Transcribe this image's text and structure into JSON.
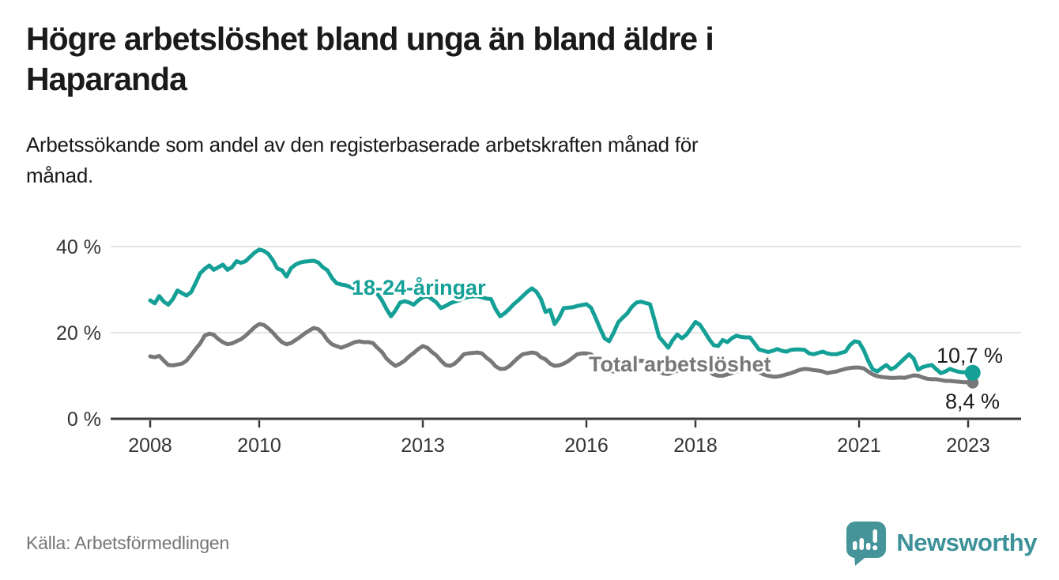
{
  "header": {
    "title": "Högre arbetslöshet bland unga än bland äldre i Haparanda",
    "title_line1": "Högre arbetslöshet bland unga än bland äldre i",
    "title_line2": "Haparanda",
    "subtitle": "Arbetssökande som andel av den registerbaserade arbetskraften månad för månad.",
    "subtitle_line1": "Arbetssökande som andel av den registerbaserade arbetskraften månad för",
    "subtitle_line2": "månad."
  },
  "footer": {
    "source": "Källa: Arbetsförmedlingen",
    "brand": "Newsworthy"
  },
  "colors": {
    "youth": "#14a096",
    "total": "#787878",
    "grid": "#dcdcdc",
    "axis": "#3a3a3a",
    "text": "#1a1a1a",
    "muted": "#757575",
    "brand": "#3d929a"
  },
  "chart_data": {
    "type": "line",
    "title": "Högre arbetslöshet bland unga än bland äldre i Haparanda",
    "subtitle": "Arbetssökande som andel av den registerbaserade arbetskraften månad för månad.",
    "unit": "%",
    "frequency": "monthly",
    "x_start": "2008-01",
    "x_end": "2023-02",
    "grid": "horizontal",
    "legend_position": "inline-labels",
    "x_axis": {
      "ticks": [
        {
          "year": 2008,
          "label": "2008"
        },
        {
          "year": 2010,
          "label": "2010"
        },
        {
          "year": 2013,
          "label": "2013"
        },
        {
          "year": 2016,
          "label": "2016"
        },
        {
          "year": 2018,
          "label": "2018"
        },
        {
          "year": 2021,
          "label": "2021"
        },
        {
          "year": 2023,
          "label": "2023"
        }
      ]
    },
    "y_axis": {
      "range": [
        0,
        44
      ],
      "ticks": [
        {
          "value": 0,
          "label": "0 %"
        },
        {
          "value": 20,
          "label": "20 %"
        },
        {
          "value": 40,
          "label": "40 %"
        }
      ]
    },
    "series": [
      {
        "id": "youth",
        "name": "18-24-åringar",
        "color": "#14a096",
        "end_label": "10,7 %",
        "end_value": 10.7,
        "values": [
          27.5,
          26.8,
          28.5,
          27.2,
          26.5,
          27.8,
          29.8,
          29.2,
          28.6,
          29.4,
          31.5,
          33.8,
          34.8,
          35.6,
          34.6,
          35.2,
          35.8,
          34.6,
          35.2,
          36.6,
          36.2,
          36.6,
          37.6,
          38.6,
          39.3,
          39.0,
          38.3,
          36.8,
          34.9,
          34.5,
          33.0,
          35.0,
          35.8,
          36.3,
          36.5,
          36.6,
          36.7,
          36.3,
          35.2,
          34.5,
          32.7,
          31.5,
          31.2,
          31.0,
          30.6,
          30.2,
          29.8,
          29.5,
          29.8,
          30.2,
          29.0,
          27.5,
          25.5,
          23.8,
          25.2,
          27.0,
          27.3,
          27.0,
          26.5,
          27.5,
          28.2,
          28.5,
          27.8,
          27.0,
          25.7,
          26.2,
          26.8,
          27.2,
          27.5,
          28.0,
          28.3,
          28.4,
          28.5,
          28.2,
          27.9,
          27.8,
          25.5,
          23.8,
          24.5,
          25.5,
          26.6,
          27.5,
          28.5,
          29.5,
          30.3,
          29.5,
          27.8,
          24.8,
          25.3,
          22.0,
          23.5,
          25.7,
          25.8,
          25.9,
          26.2,
          26.4,
          26.6,
          25.8,
          23.5,
          21.0,
          18.7,
          18.0,
          20.0,
          22.4,
          23.5,
          24.5,
          26.0,
          27.0,
          27.2,
          26.9,
          26.6,
          22.9,
          19.0,
          17.8,
          16.5,
          18.3,
          19.6,
          18.7,
          19.5,
          21.0,
          22.5,
          21.8,
          20.2,
          18.5,
          17.1,
          16.9,
          18.3,
          17.8,
          18.7,
          19.3,
          19.0,
          18.9,
          18.9,
          17.5,
          16.1,
          15.8,
          15.5,
          15.8,
          16.2,
          15.8,
          15.6,
          16.0,
          16.1,
          16.1,
          16.0,
          15.2,
          15.0,
          15.3,
          15.6,
          15.2,
          15.0,
          15.0,
          15.3,
          15.6,
          17.1,
          18.0,
          17.8,
          16.0,
          13.5,
          11.5,
          11.0,
          11.8,
          12.5,
          11.5,
          12.0,
          13.0,
          14.0,
          15.0,
          14.0,
          11.4,
          12.0,
          12.3,
          12.5,
          11.5,
          10.6,
          11.0,
          11.6,
          11.2,
          10.9,
          10.8,
          10.8,
          10.7
        ]
      },
      {
        "id": "total",
        "name": "Total arbetslöshet",
        "color": "#787878",
        "end_label": "8,4 %",
        "end_value": 8.4,
        "values": [
          14.5,
          14.3,
          14.6,
          13.5,
          12.5,
          12.4,
          12.6,
          12.8,
          13.5,
          14.8,
          16.2,
          17.5,
          19.3,
          19.8,
          19.5,
          18.5,
          17.8,
          17.3,
          17.5,
          18.0,
          18.5,
          19.3,
          20.3,
          21.3,
          22.0,
          21.8,
          21.0,
          20.0,
          18.8,
          17.8,
          17.3,
          17.6,
          18.3,
          19.0,
          19.8,
          20.5,
          21.1,
          20.8,
          19.8,
          18.3,
          17.3,
          16.9,
          16.5,
          16.9,
          17.3,
          17.8,
          18.0,
          17.8,
          17.8,
          17.6,
          16.5,
          15.5,
          14.0,
          13.0,
          12.3,
          12.8,
          13.5,
          14.5,
          15.3,
          16.2,
          16.9,
          16.5,
          15.5,
          14.7,
          13.5,
          12.5,
          12.3,
          12.8,
          13.8,
          15.0,
          15.2,
          15.3,
          15.4,
          15.2,
          14.2,
          13.4,
          12.2,
          11.6,
          11.6,
          12.2,
          13.2,
          14.2,
          15.0,
          15.2,
          15.4,
          15.2,
          14.3,
          13.8,
          12.8,
          12.3,
          12.4,
          12.8,
          13.4,
          14.2,
          15.0,
          15.2,
          15.2,
          15.0,
          14.0,
          13.0,
          12.0,
          11.2,
          11.0,
          11.4,
          12.0,
          12.6,
          13.0,
          13.3,
          13.5,
          13.3,
          12.5,
          11.8,
          11.0,
          10.5,
          10.4,
          10.8,
          11.2,
          11.6,
          12.0,
          12.3,
          12.5,
          12.3,
          11.8,
          11.0,
          10.3,
          10.0,
          10.0,
          10.3,
          10.6,
          11.0,
          11.2,
          11.4,
          11.5,
          11.3,
          10.8,
          10.3,
          10.0,
          9.8,
          9.8,
          10.0,
          10.3,
          10.6,
          11.0,
          11.4,
          11.6,
          11.5,
          11.3,
          11.2,
          11.0,
          10.6,
          10.8,
          11.0,
          11.3,
          11.6,
          11.8,
          11.9,
          11.9,
          11.7,
          11.0,
          10.3,
          9.9,
          9.7,
          9.6,
          9.5,
          9.5,
          9.6,
          9.5,
          9.8,
          10.1,
          10.0,
          9.6,
          9.3,
          9.2,
          9.2,
          9.0,
          8.8,
          8.8,
          8.7,
          8.6,
          8.5,
          8.5,
          8.4
        ]
      }
    ]
  }
}
